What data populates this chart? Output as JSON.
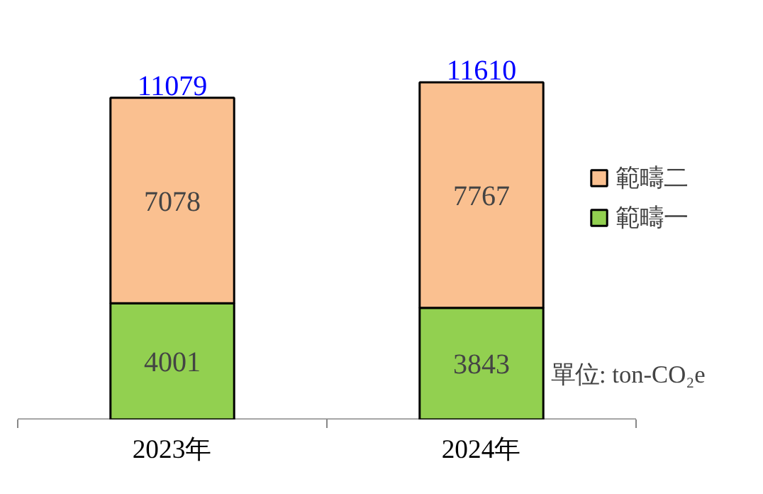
{
  "chart_data": {
    "type": "bar",
    "stacked": true,
    "categories": [
      "2023年",
      "2024年"
    ],
    "series": [
      {
        "name": "範疇一",
        "color": "#92d050",
        "values": [
          4001,
          3843
        ]
      },
      {
        "name": "範疇二",
        "color": "#fac090",
        "values": [
          7078,
          7767
        ]
      }
    ],
    "data_labels": true,
    "totals": [
      "11079",
      "11610"
    ],
    "legend": "right",
    "grid": false,
    "annotations": [
      "單位: ton-CO₂e"
    ]
  }
}
